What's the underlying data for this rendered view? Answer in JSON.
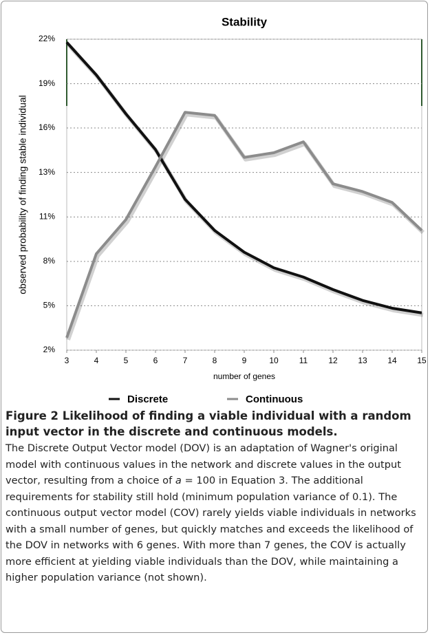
{
  "chart_data": {
    "type": "line",
    "title": "Stability",
    "xlabel": "number of genes",
    "ylabel": "observed probability of finding stable individual",
    "x": [
      3,
      4,
      5,
      6,
      7,
      8,
      9,
      10,
      11,
      12,
      13,
      14,
      15
    ],
    "series": [
      {
        "name": "Discrete",
        "color": "#111111",
        "values": [
          21.8,
          19.7,
          17.2,
          14.9,
          11.7,
          9.7,
          8.3,
          7.3,
          6.7,
          5.9,
          5.2,
          4.7,
          4.4
        ]
      },
      {
        "name": "Continuous",
        "color": "#8c8c8c",
        "values": [
          2.8,
          8.2,
          10.4,
          13.8,
          17.3,
          17.1,
          14.4,
          14.7,
          15.4,
          12.7,
          12.2,
          11.5,
          9.7
        ]
      }
    ],
    "xlim": [
      3,
      15
    ],
    "xticks": [
      3,
      4,
      5,
      6,
      7,
      8,
      9,
      10,
      11,
      12,
      13,
      14,
      15
    ],
    "ylim": [
      2,
      22
    ],
    "yticks": [
      {
        "value": 2,
        "label": "2%"
      },
      {
        "value": 4.86,
        "label": "5%"
      },
      {
        "value": 7.71,
        "label": "8%"
      },
      {
        "value": 10.57,
        "label": "11%"
      },
      {
        "value": 13.43,
        "label": "13%"
      },
      {
        "value": 16.29,
        "label": "16%"
      },
      {
        "value": 19.14,
        "label": "19%"
      },
      {
        "value": 22,
        "label": "22%"
      }
    ],
    "grid": true
  },
  "caption": {
    "title": "Figure 2 Likelihood of finding a viable individual with a random input vector in the discrete and continuous models.",
    "text": [
      "The Discrete Output Vector model (DOV) is an adaptation of Wagner's original model with continuous values in the network and discrete values in the output vector, resulting from a choice of ",
      "a",
      " = 100 in Equation 3. The additional requirements for stability still hold (minimum population variance of 0.1). The continuous output vector model (COV) rarely yields viable individuals in networks with a small number of genes, but quickly matches and exceeds the likelihood of the DOV in networks with 6 genes. With more than 7 genes, the COV is actually more efficient at yielding viable individuals than the DOV, while maintaining a higher population variance (not shown)."
    ]
  }
}
